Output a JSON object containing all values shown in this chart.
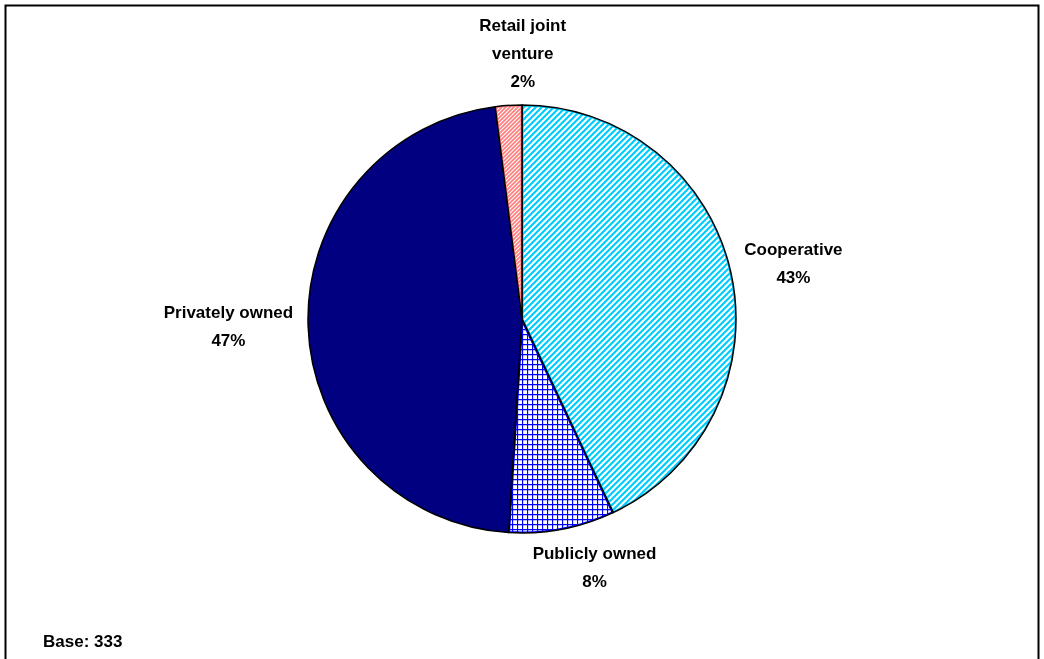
{
  "chart_data": {
    "type": "pie",
    "categories": [
      "Cooperative",
      "Publicly owned",
      "Privately owned",
      "Retail joint venture"
    ],
    "values": [
      43,
      8,
      47,
      2
    ],
    "colors": [
      "#00ccff",
      "#0000ff",
      "#000080",
      "#ff8080"
    ],
    "value_labels": [
      "43%",
      "8%",
      "47%",
      "2%"
    ],
    "annotations": [
      "Base: 333"
    ]
  }
}
